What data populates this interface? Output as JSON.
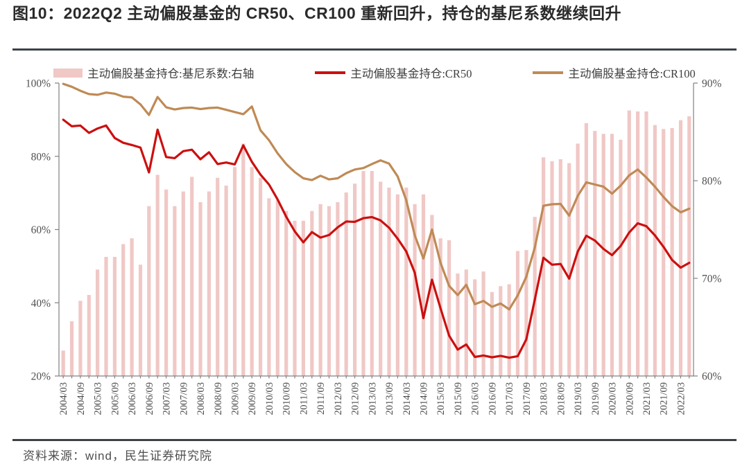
{
  "title": "图10：2022Q2 主动偏股基金的 CR50、CR100 重新回升，持仓的基尼系数继续回升",
  "source": "资料来源：wind，民生证券研究院",
  "legend": [
    {
      "label": "主动偏股基金持仓:基尼系数:右轴",
      "color": "#f0c8c6",
      "type": "bar"
    },
    {
      "label": "主动偏股基金持仓:CR50",
      "color": "#cc0f0f",
      "type": "line"
    },
    {
      "label": "主动偏股基金持仓:CR100",
      "color": "#bf8a55",
      "type": "line"
    }
  ],
  "colors": {
    "bar": "#f0c8c6",
    "cr50": "#cc0f0f",
    "cr100": "#bf8a55",
    "axis": "#808080",
    "tick_label": "#4f4f4f",
    "rule": "#3c4148"
  },
  "chart_data": {
    "type": "combo-bar-line",
    "x": [
      "2004/03",
      "2004/06",
      "2004/09",
      "2004/12",
      "2005/03",
      "2005/06",
      "2005/09",
      "2005/12",
      "2006/03",
      "2006/06",
      "2006/09",
      "2006/12",
      "2007/03",
      "2007/06",
      "2007/09",
      "2007/12",
      "2008/03",
      "2008/06",
      "2008/09",
      "2008/12",
      "2009/03",
      "2009/06",
      "2009/09",
      "2009/12",
      "2010/03",
      "2010/06",
      "2010/09",
      "2010/12",
      "2011/03",
      "2011/06",
      "2011/09",
      "2011/12",
      "2012/03",
      "2012/06",
      "2012/09",
      "2012/12",
      "2013/03",
      "2013/06",
      "2013/09",
      "2013/12",
      "2014/03",
      "2014/06",
      "2014/09",
      "2014/12",
      "2015/03",
      "2015/06",
      "2015/09",
      "2015/12",
      "2016/03",
      "2016/06",
      "2016/09",
      "2016/12",
      "2017/03",
      "2017/06",
      "2017/09",
      "2017/12",
      "2018/03",
      "2018/06",
      "2018/09",
      "2018/12",
      "2019/03",
      "2019/06",
      "2019/09",
      "2019/12",
      "2020/03",
      "2020/06",
      "2020/09",
      "2020/12",
      "2021/03",
      "2021/06",
      "2021/09",
      "2021/12",
      "2022/03",
      "2022/06"
    ],
    "x_label_every": 2,
    "series": [
      {
        "name": "主动偏股基金持仓:基尼系数:右轴",
        "type": "bar",
        "axis": "right",
        "values": [
          62.6,
          65.6,
          67.7,
          68.3,
          70.9,
          72.2,
          72.2,
          73.5,
          74.1,
          71.4,
          77.4,
          80.6,
          79.1,
          77.4,
          78.9,
          80.4,
          77.8,
          78.9,
          80.3,
          79.5,
          81.4,
          83.8,
          81.4,
          80.3,
          78.2,
          78.0,
          76.9,
          75.9,
          75.9,
          76.9,
          77.6,
          77.4,
          77.8,
          78.8,
          79.7,
          81.0,
          81.0,
          79.9,
          79.3,
          78.6,
          79.3,
          77.6,
          78.6,
          76.5,
          74.1,
          73.9,
          70.5,
          70.9,
          69.9,
          70.7,
          68.6,
          69.2,
          69.4,
          72.8,
          72.9,
          76.3,
          82.4,
          82.0,
          82.2,
          81.8,
          83.8,
          85.9,
          85.1,
          84.8,
          84.8,
          84.2,
          87.2,
          87.1,
          87.1,
          85.7,
          85.3,
          85.4,
          86.2,
          86.6
        ]
      },
      {
        "name": "主动偏股基金持仓:CR100",
        "type": "line",
        "axis": "left",
        "values": [
          99.8,
          99.0,
          97.9,
          97.0,
          96.8,
          97.4,
          97.1,
          96.3,
          96.1,
          94.2,
          91.3,
          96.2,
          93.4,
          92.8,
          93.2,
          93.3,
          92.9,
          93.2,
          93.3,
          92.7,
          92.1,
          91.5,
          93.6,
          87.1,
          84.4,
          80.8,
          77.9,
          75.7,
          74.0,
          73.5,
          74.7,
          73.7,
          74.0,
          75.4,
          76.4,
          76.8,
          77.9,
          78.9,
          78.0,
          74.5,
          68.0,
          58.4,
          52.1,
          60.0,
          50.9,
          44.6,
          42.1,
          44.9,
          39.6,
          40.5,
          38.9,
          39.8,
          38.2,
          42.0,
          47.1,
          55.2,
          66.5,
          66.9,
          67.0,
          63.8,
          69.2,
          72.9,
          72.3,
          71.7,
          69.8,
          72.0,
          74.8,
          76.4,
          74.2,
          71.7,
          68.9,
          66.4,
          64.7,
          65.7
        ]
      },
      {
        "name": "主动偏股基金持仓:CR50",
        "type": "line",
        "axis": "left",
        "values": [
          90.0,
          88.2,
          88.4,
          86.4,
          87.6,
          88.4,
          85.0,
          83.7,
          83.1,
          82.4,
          75.6,
          87.3,
          79.8,
          79.5,
          81.4,
          81.8,
          79.2,
          81.1,
          77.9,
          78.3,
          77.8,
          83.0,
          78.5,
          75.0,
          72.3,
          68.2,
          63.5,
          59.5,
          56.5,
          59.3,
          57.8,
          58.5,
          60.6,
          62.2,
          62.1,
          63.1,
          63.4,
          62.5,
          60.5,
          57.5,
          54.0,
          48.2,
          35.8,
          46.3,
          38.5,
          31.0,
          27.2,
          28.6,
          25.2,
          25.6,
          25.1,
          25.5,
          25.0,
          25.4,
          30.0,
          41.0,
          52.3,
          50.4,
          50.6,
          46.6,
          54.0,
          58.3,
          57.0,
          54.7,
          53.0,
          55.5,
          59.2,
          61.7,
          60.9,
          58.4,
          55.3,
          51.7,
          49.6,
          50.9
        ]
      }
    ],
    "left_axis": {
      "min": 20,
      "max": 100,
      "tick_step": 20,
      "tick_labels": [
        "20%",
        "40%",
        "60%",
        "80%",
        "100%"
      ]
    },
    "right_axis": {
      "min": 60,
      "max": 90,
      "tick_step": 10,
      "tick_labels": [
        "60%",
        "70%",
        "80%",
        "90%"
      ]
    },
    "grid": false,
    "legend_position": "top"
  }
}
